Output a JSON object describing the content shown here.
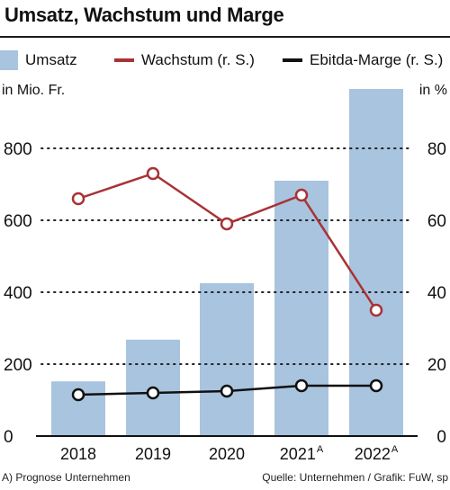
{
  "title": "Umsatz, Wachstum und Marge",
  "legend": {
    "umsatz": "Umsatz",
    "wachstum": "Wachstum (r. S.)",
    "marge": "Ebitda-Marge (r. S.)"
  },
  "axis": {
    "left_unit": "in Mio. Fr.",
    "right_unit": "in %"
  },
  "footnote": "A) Prognose Unternehmen",
  "source": "Quelle: Unternehmen / Grafik: FuW, sp",
  "colors": {
    "bar": "#a8c4df",
    "growth": "#a83236",
    "margin": "#111111",
    "grid": "#222222"
  },
  "chart_data": {
    "type": "bar",
    "categories": [
      "2018",
      "2019",
      "2020",
      "2021",
      "2022"
    ],
    "category_superscripts": [
      "",
      "",
      "",
      "A",
      "A"
    ],
    "series": [
      {
        "name": "Umsatz",
        "type": "bar",
        "axis": "left",
        "values": [
          152,
          268,
          425,
          710,
          965
        ]
      },
      {
        "name": "Wachstum (r. S.)",
        "type": "line",
        "axis": "right",
        "values": [
          66,
          73,
          59,
          67,
          35
        ]
      },
      {
        "name": "Ebitda-Marge (r. S.)",
        "type": "line",
        "axis": "right",
        "values": [
          11.5,
          12,
          12.5,
          14,
          14
        ]
      }
    ],
    "y_left": {
      "ylim": [
        0,
        1000
      ],
      "ticks": [
        0,
        200,
        400,
        600,
        800
      ]
    },
    "y_right": {
      "ylim": [
        0,
        100
      ],
      "ticks": [
        0,
        20,
        40,
        60,
        80
      ]
    },
    "grid": true
  }
}
